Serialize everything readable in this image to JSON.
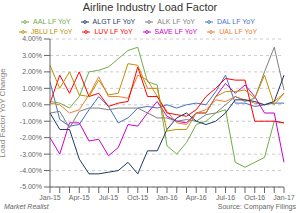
{
  "chart_data": {
    "type": "line",
    "title": "Airline Industry Load Factor",
    "y_label": "Load Factor YoY Change",
    "annotations": [
      "Market Realist",
      "Source: Company Filings"
    ],
    "categories": [
      "Jan-15",
      null,
      null,
      "Apr-15",
      null,
      null,
      "Jul-15",
      null,
      null,
      "Oct-15",
      null,
      null,
      "Jan-16",
      null,
      null,
      "Apr-16",
      null,
      null,
      "Jul-16",
      null,
      null,
      "Oct-16",
      null,
      null,
      "Jan-17"
    ],
    "ylim": [
      -5.0,
      4.0
    ],
    "yticks": [
      {
        "value": -5.0,
        "label": "-5.00%"
      },
      {
        "value": -4.0,
        "label": "-4.00%"
      },
      {
        "value": -3.0,
        "label": "-3.00%"
      },
      {
        "value": -2.0,
        "label": "-2.00%"
      },
      {
        "value": -1.0,
        "label": "-1.00%"
      },
      {
        "value": 0.0,
        "label": "0.00%"
      },
      {
        "value": 1.0,
        "label": "1.00%"
      },
      {
        "value": 2.0,
        "label": "2.00%"
      },
      {
        "value": 3.0,
        "label": "3.00%"
      },
      {
        "value": 4.0,
        "label": "4.00%"
      }
    ],
    "grid": true,
    "legend": "top",
    "series": [
      {
        "name": "DAL LF YoY",
        "color": "#4472c4",
        "values": [
          1.4,
          -0.9,
          -1.3,
          -1.2,
          -0.3,
          0.5,
          -0.1,
          -1.1,
          -0.8,
          -0.2,
          -0.1,
          -0.2,
          0.0,
          -0.2,
          0.0,
          0.1,
          0.0,
          0.8,
          1.8,
          0.1,
          0.1,
          -0.1,
          0.0,
          0.1,
          0.1
        ]
      },
      {
        "name": "UAL LF YoY",
        "color": "#ed7d31",
        "values": [
          0.1,
          0.0,
          -0.5,
          -0.3,
          0.6,
          1.7,
          0.5,
          0.5,
          0.4,
          1.8,
          1.5,
          0.5,
          -0.4,
          -1.1,
          -1.2,
          -0.5,
          -0.3,
          0.3,
          0.2,
          0.5,
          0.3,
          0.1,
          0.0,
          0.2,
          0.7
        ]
      },
      {
        "name": "AAL LF YoY",
        "color": "#70ad47",
        "values": [
          0.2,
          0.1,
          -0.2,
          0.5,
          2.0,
          2.1,
          2.3,
          2.8,
          3.3,
          3.5,
          1.4,
          1.2,
          -2.5,
          -3.0,
          -2.3,
          -1.2,
          -1.0,
          -0.5,
          -0.3,
          -3.5,
          -3.8,
          -3.5,
          -3.2,
          -1.0,
          -1.1
        ]
      },
      {
        "name": "LUV LF YoY",
        "color": "#ff0000",
        "values": [
          0.1,
          1.8,
          0.7,
          2.0,
          0.5,
          0.7,
          -0.1,
          0.1,
          0.2,
          2.3,
          0.5,
          0.5,
          -0.5,
          -0.6,
          -0.7,
          -0.3,
          0.5,
          1.0,
          1.6,
          1.5,
          1.5,
          -1.0,
          -1.0,
          -1.0,
          -1.1
        ]
      },
      {
        "name": "SAVE LF YoY",
        "color": "#cc00cc",
        "values": [
          -2.0,
          -3.0,
          -1.1,
          -1.1,
          -2.2,
          -2.1,
          -3.1,
          -2.6,
          -1.2,
          -1.3,
          -0.5,
          0.2,
          -0.7,
          -1.0,
          -1.1,
          -0.5,
          -0.5,
          0.5,
          1.3,
          0.7,
          1.2,
          0.5,
          -0.5,
          -0.5,
          -3.5
        ]
      },
      {
        "name": "ALK LF YoY",
        "color": "#7f7f7f",
        "values": [
          -0.5,
          -0.4,
          -1.4,
          -0.4,
          -0.2,
          -0.2,
          -0.3,
          -0.2,
          -0.2,
          -0.2,
          -0.5,
          -0.8,
          -0.8,
          -1.0,
          -0.9,
          -1.0,
          -0.6,
          -0.5,
          0.0,
          0.5,
          0.2,
          0.4,
          2.0,
          3.5,
          0.9
        ]
      },
      {
        "name": "ALGT LF YoY",
        "color": "#1f3864",
        "values": [
          -0.5,
          -1.5,
          -1.5,
          -3.3,
          -4.2,
          -4.2,
          -4.1,
          -4.0,
          -3.5,
          -4.2,
          -2.8,
          -2.8,
          -1.5,
          -0.8,
          -0.5,
          -1.0,
          -1.2,
          -1.0,
          -0.5,
          0.3,
          0.3,
          0.2,
          0.0,
          0.2,
          1.8
        ]
      },
      {
        "name": "JBLU LF YoY",
        "color": "#c09000",
        "values": [
          2.4,
          1.0,
          2.0,
          0.6,
          0.5,
          1.5,
          0.6,
          0.7,
          2.5,
          2.4,
          1.0,
          1.0,
          -1.6,
          -1.5,
          -1.5,
          -0.5,
          -0.5,
          0.5,
          0.8,
          0.8,
          0.9,
          0.4,
          1.8,
          0.0,
          0.7
        ]
      }
    ]
  }
}
